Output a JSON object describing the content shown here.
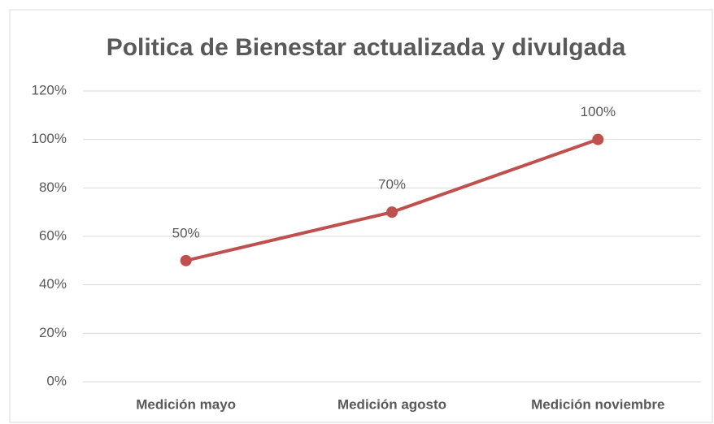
{
  "chart_data": {
    "type": "line",
    "title": "Politica de Bienestar actualizada y divulgada",
    "categories": [
      "Medición mayo",
      "Medición agosto",
      "Medición noviembre"
    ],
    "series": [
      {
        "name": "Politica de Bienestar actualizada y divulgada",
        "color": "#c0504d",
        "values": [
          50,
          70,
          100
        ],
        "value_labels": [
          "50%",
          "70%",
          "100%"
        ]
      }
    ],
    "ylim": [
      0,
      120
    ],
    "yticks": [
      {
        "value": 0,
        "label": "0%"
      },
      {
        "value": 20,
        "label": "20%"
      },
      {
        "value": 40,
        "label": "40%"
      },
      {
        "value": 60,
        "label": "60%"
      },
      {
        "value": 80,
        "label": "80%"
      },
      {
        "value": 100,
        "label": "100%"
      },
      {
        "value": 120,
        "label": "120%"
      }
    ],
    "grid": true
  }
}
